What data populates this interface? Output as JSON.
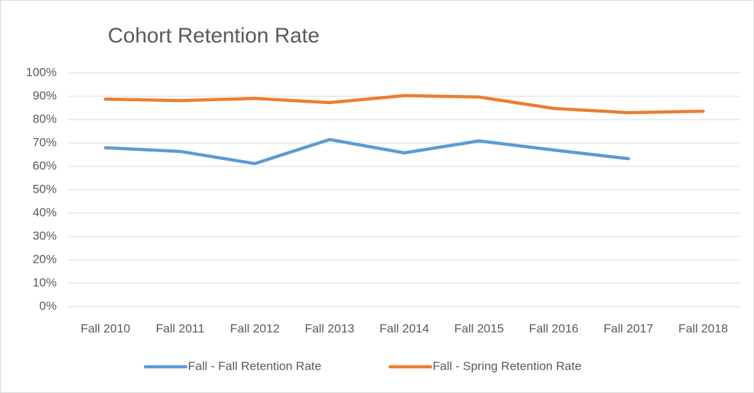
{
  "chart_data": {
    "type": "line",
    "title": "Cohort Retention Rate",
    "categories": [
      "Fall 2010",
      "Fall 2011",
      "Fall 2012",
      "Fall 2013",
      "Fall 2014",
      "Fall 2015",
      "Fall 2016",
      "Fall 2017",
      "Fall 2018"
    ],
    "series": [
      {
        "name": "Fall - Fall Retention Rate",
        "color": "#5b9bd5",
        "values": [
          68,
          66.4,
          61.2,
          71.5,
          65.8,
          70.9,
          67,
          63.3,
          null
        ]
      },
      {
        "name": "Fall - Spring Retention Rate",
        "color": "#ed7d31",
        "values": [
          88.8,
          88.2,
          89.1,
          87.3,
          90.3,
          89.7,
          84.8,
          83,
          83.6
        ]
      }
    ],
    "ylim": [
      0,
      100
    ],
    "yticks": [
      {
        "value": 0,
        "label": "0%"
      },
      {
        "value": 10,
        "label": "10%"
      },
      {
        "value": 20,
        "label": "20%"
      },
      {
        "value": 30,
        "label": "30%"
      },
      {
        "value": 40,
        "label": "40%"
      },
      {
        "value": 50,
        "label": "50%"
      },
      {
        "value": 60,
        "label": "60%"
      },
      {
        "value": 70,
        "label": "70%"
      },
      {
        "value": 80,
        "label": "80%"
      },
      {
        "value": 90,
        "label": "90%"
      },
      {
        "value": 100,
        "label": "100%"
      }
    ],
    "grid": true,
    "legend": "bottom"
  }
}
